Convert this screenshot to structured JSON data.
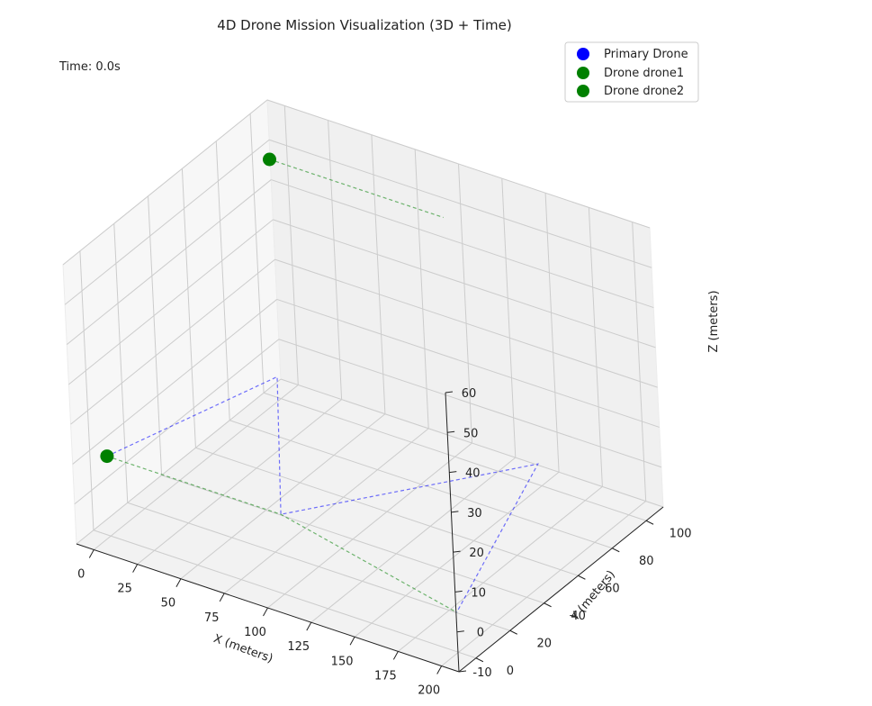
{
  "chart_data": {
    "type": "scatter",
    "title": "4D Drone Mission Visualization (3D + Time)",
    "time_label": "Time: 0.0s",
    "xlabel": "X (meters)",
    "ylabel": "Y (meters)",
    "zlabel": "Z (meters)",
    "xlim": [
      -10,
      210
    ],
    "ylim": [
      -10,
      110
    ],
    "zlim": [
      -10,
      60
    ],
    "x_ticks": [
      0,
      25,
      50,
      75,
      100,
      125,
      150,
      175,
      200
    ],
    "y_ticks": [
      0,
      20,
      40,
      60,
      80,
      100
    ],
    "z_ticks": [
      -10,
      0,
      10,
      20,
      30,
      40,
      50,
      60
    ],
    "grid": true,
    "legend_position": "top-right",
    "legend": [
      {
        "label": "Primary Drone",
        "color": "#0000ff"
      },
      {
        "label": "Drone drone1",
        "color": "#008000"
      },
      {
        "label": "Drone drone2",
        "color": "#008000"
      }
    ],
    "paths": [
      {
        "name": "Primary Drone",
        "color": "#0000ff",
        "points": [
          [
            0,
            0,
            10
          ],
          [
            50,
            50,
            20
          ],
          [
            100,
            0,
            10
          ],
          [
            200,
            50,
            20
          ],
          [
            200,
            0,
            0
          ]
        ]
      },
      {
        "name": "Drone drone1",
        "color": "#008000",
        "points": [
          [
            0,
            0,
            10
          ],
          [
            100,
            0,
            10
          ],
          [
            200,
            0,
            0
          ]
        ]
      },
      {
        "name": "Drone drone2",
        "color": "#008000",
        "points": [
          [
            0,
            100,
            50
          ],
          [
            100,
            100,
            50
          ]
        ]
      }
    ],
    "markers": [
      {
        "name": "Drone drone1",
        "color": "#008000",
        "x": 0,
        "y": 0,
        "z": 10
      },
      {
        "name": "Drone drone2",
        "color": "#008000",
        "x": 0,
        "y": 100,
        "z": 50
      }
    ]
  }
}
